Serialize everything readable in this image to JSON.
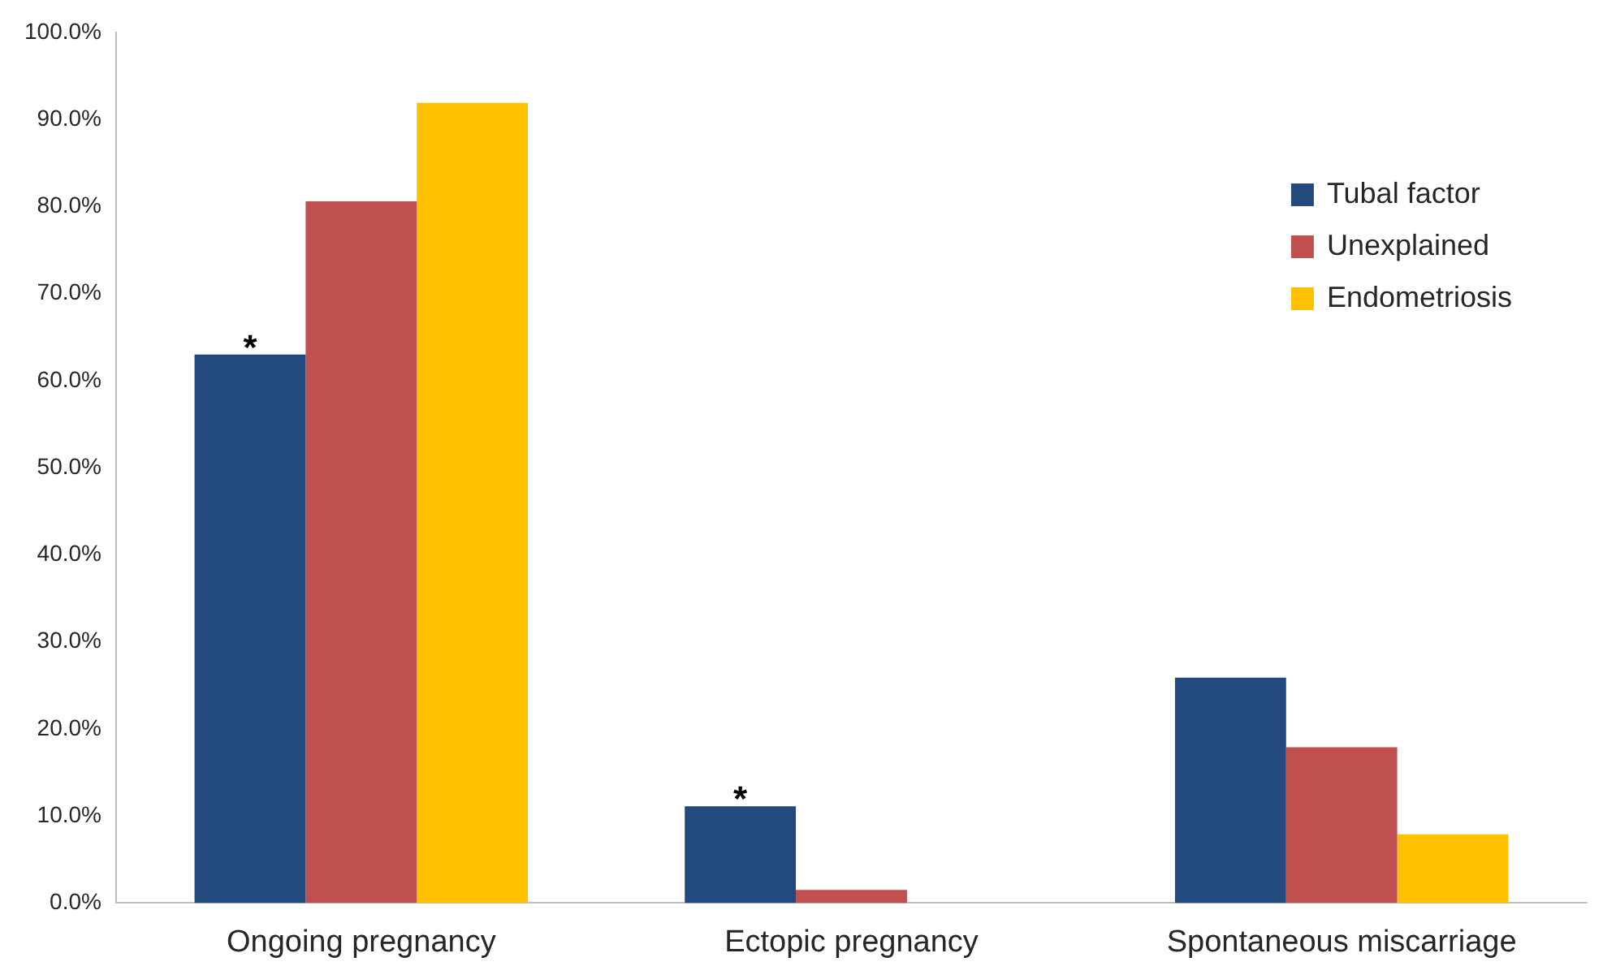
{
  "chart_data": {
    "type": "bar",
    "categories": [
      "Ongoing pregnancy",
      "Ectopic pregnancy",
      "Spontaneous miscarriage"
    ],
    "series": [
      {
        "name": "Tubal factor",
        "color": "#234a7c",
        "values": [
          63,
          11.1,
          25.9
        ]
      },
      {
        "name": "Unexplained",
        "color": "#c0504d",
        "values": [
          80.6,
          1.5,
          17.9
        ]
      },
      {
        "name": "Endometriosis",
        "color": "#ffc000",
        "values": [
          91.9,
          0,
          7.9
        ]
      }
    ],
    "ylim": [
      0,
      100
    ],
    "yticks": [
      {
        "value": 0,
        "label": "0.0%"
      },
      {
        "value": 10,
        "label": "10.0%"
      },
      {
        "value": 20,
        "label": "20.0%"
      },
      {
        "value": 30,
        "label": "30.0%"
      },
      {
        "value": 40,
        "label": "40.0%"
      },
      {
        "value": 50,
        "label": "50.0%"
      },
      {
        "value": 60,
        "label": "60.0%"
      },
      {
        "value": 70,
        "label": "70.0%"
      },
      {
        "value": 80,
        "label": "80.0%"
      },
      {
        "value": 90,
        "label": "90.0%"
      },
      {
        "value": 100,
        "label": "100.0%"
      }
    ],
    "annotations": [
      "*",
      "*"
    ],
    "grid": false,
    "legend": "top right"
  }
}
